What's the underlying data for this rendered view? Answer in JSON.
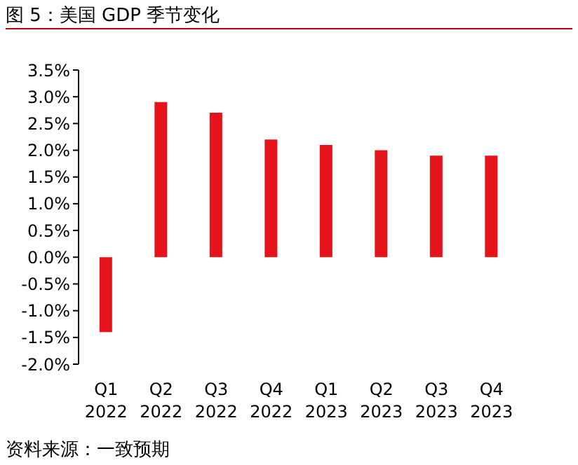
{
  "chart_data": {
    "type": "bar",
    "title": "图 5：美国 GDP 季节变化",
    "categories": [
      "Q1 2022",
      "Q2 2022",
      "Q3 2022",
      "Q4 2022",
      "Q1 2023",
      "Q2 2023",
      "Q3 2023",
      "Q4 2023"
    ],
    "values": [
      -1.4,
      2.9,
      2.7,
      2.2,
      2.1,
      2.0,
      1.9,
      1.9
    ],
    "color": "#e5141b",
    "ylim": [
      -2.0,
      3.5
    ],
    "yticks": [
      {
        "value": -2.0,
        "label": "-2.0%"
      },
      {
        "value": -1.5,
        "label": "-1.5%"
      },
      {
        "value": -1.0,
        "label": "-1.0%"
      },
      {
        "value": -0.5,
        "label": "-0.5%"
      },
      {
        "value": 0,
        "label": "0.0%"
      },
      {
        "value": 0.5,
        "label": "0.5%"
      },
      {
        "value": 1.0,
        "label": "1.0%"
      },
      {
        "value": 1.5,
        "label": "1.5%"
      },
      {
        "value": 2.0,
        "label": "2.0%"
      },
      {
        "value": 2.5,
        "label": "2.5%"
      },
      {
        "value": 3.0,
        "label": "3.0%"
      },
      {
        "value": 3.5,
        "label": "3.5%"
      }
    ],
    "grid": false,
    "annotations": [
      "资料来源：一致预期"
    ]
  }
}
